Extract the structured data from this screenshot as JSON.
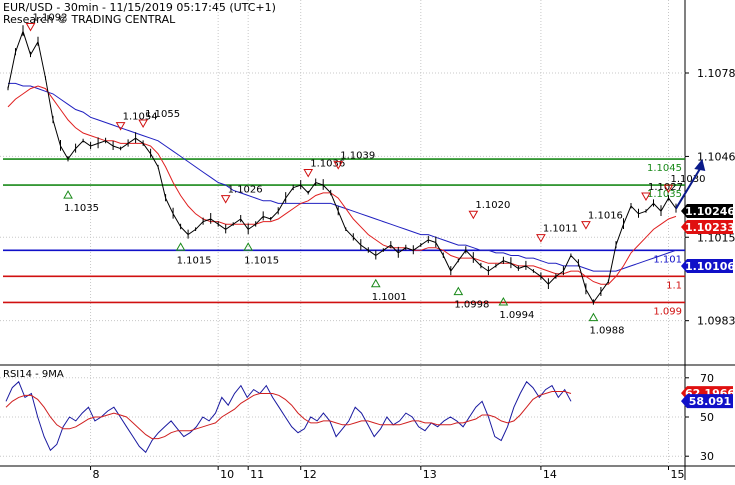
{
  "header": {
    "title": "EUR/USD - 30min - 11/15/2019 05:17:45 (UTC+1)",
    "subtitle": "Research © TRADING CENTRAL"
  },
  "colors": {
    "price": "#000000",
    "ma_fast": "#e02020",
    "ma_slow": "#2020c0",
    "green_line": "#1a8a1a",
    "blue_line": "#1010c8",
    "red_line": "#d01010",
    "arrow": "#0a1a8a",
    "grid": "#c8c8c8",
    "rsi": "#1a1aa0",
    "rsi_ma": "#d02020",
    "tag_black": "#000000",
    "tag_red": "#e01010",
    "tag_blue": "#1010c8"
  },
  "chart_data": [
    {
      "type": "line",
      "name": "price",
      "ylim": [
        1.0966,
        1.1106
      ],
      "price_axis_ticks": [
        "1.1078",
        "1.1046",
        "1.1015",
        "1.0983"
      ],
      "x_axis_labels": [
        {
          "label": "8",
          "index": 11
        },
        {
          "label": "10",
          "index": 28
        },
        {
          "label": "11",
          "index": 32
        },
        {
          "label": "12",
          "index": 39
        },
        {
          "label": "13",
          "index": 55
        },
        {
          "label": "14",
          "index": 71
        },
        {
          "label": "15",
          "index": 88
        }
      ],
      "close": [
        1.1072,
        1.1086,
        1.1094,
        1.1085,
        1.109,
        1.1076,
        1.106,
        1.105,
        1.1045,
        1.1049,
        1.1052,
        1.105,
        1.1051,
        1.1052,
        1.105,
        1.1049,
        1.1051,
        1.1053,
        1.1051,
        1.1047,
        1.1042,
        1.103,
        1.1024,
        1.1019,
        1.1016,
        1.1018,
        1.1021,
        1.1022,
        1.102,
        1.1018,
        1.102,
        1.1022,
        1.1018,
        1.102,
        1.1023,
        1.1022,
        1.1025,
        1.103,
        1.1034,
        1.1035,
        1.1032,
        1.1036,
        1.1035,
        1.1032,
        1.1025,
        1.1018,
        1.1015,
        1.1012,
        1.101,
        1.1008,
        1.101,
        1.1012,
        1.1009,
        1.1011,
        1.101,
        1.1012,
        1.1014,
        1.1013,
        1.1008,
        1.1002,
        1.1006,
        1.101,
        1.1007,
        1.1004,
        1.1002,
        1.1004,
        1.1006,
        1.1005,
        1.1003,
        1.1004,
        1.1002,
        1.1,
        1.0997,
        1.1,
        1.1002,
        1.1008,
        1.1005,
        1.0995,
        1.099,
        1.0994,
        1.0998,
        1.1012,
        1.102,
        1.1027,
        1.1024,
        1.1025,
        1.1028,
        1.1025,
        1.103,
        1.1026
      ],
      "ma_fast": [
        1.1065,
        1.1068,
        1.107,
        1.1072,
        1.1073,
        1.1072,
        1.1068,
        1.1064,
        1.106,
        1.1057,
        1.1055,
        1.1054,
        1.1053,
        1.1052,
        1.1052,
        1.1051,
        1.1051,
        1.1051,
        1.1051,
        1.105,
        1.1047,
        1.1042,
        1.1036,
        1.1031,
        1.1027,
        1.1024,
        1.1022,
        1.1021,
        1.1021,
        1.102,
        1.102,
        1.102,
        1.102,
        1.102,
        1.1021,
        1.1021,
        1.1022,
        1.1024,
        1.1026,
        1.1028,
        1.1029,
        1.1031,
        1.1032,
        1.1032,
        1.103,
        1.1026,
        1.1022,
        1.1019,
        1.1016,
        1.1014,
        1.1012,
        1.1011,
        1.1011,
        1.1011,
        1.101,
        1.101,
        1.1011,
        1.1011,
        1.101,
        1.1008,
        1.1007,
        1.1007,
        1.1007,
        1.1006,
        1.1005,
        1.1005,
        1.1005,
        1.1005,
        1.1004,
        1.1004,
        1.1004,
        1.1003,
        1.1002,
        1.1001,
        1.1001,
        1.1002,
        1.1002,
        1.1,
        1.0998,
        1.0997,
        1.0997,
        1.1,
        1.1004,
        1.1009,
        1.1012,
        1.1015,
        1.1018,
        1.102,
        1.1022,
        1.1023
      ],
      "ma_slow": [
        1.1074,
        1.1074,
        1.1073,
        1.1073,
        1.1072,
        1.1071,
        1.107,
        1.1068,
        1.1066,
        1.1064,
        1.1063,
        1.1061,
        1.106,
        1.1059,
        1.1058,
        1.1057,
        1.1056,
        1.1055,
        1.1054,
        1.1053,
        1.1052,
        1.105,
        1.1048,
        1.1046,
        1.1044,
        1.1042,
        1.104,
        1.1038,
        1.1036,
        1.1035,
        1.1033,
        1.1032,
        1.1031,
        1.103,
        1.1029,
        1.1029,
        1.1028,
        1.1028,
        1.1028,
        1.1028,
        1.1028,
        1.1028,
        1.1028,
        1.1028,
        1.1027,
        1.1026,
        1.1025,
        1.1024,
        1.1023,
        1.1022,
        1.1021,
        1.102,
        1.1019,
        1.1018,
        1.1017,
        1.1016,
        1.1016,
        1.1015,
        1.1014,
        1.1013,
        1.1012,
        1.1012,
        1.1011,
        1.101,
        1.101,
        1.1009,
        1.1009,
        1.1008,
        1.1008,
        1.1007,
        1.1007,
        1.1006,
        1.1005,
        1.1005,
        1.1004,
        1.1004,
        1.1004,
        1.1003,
        1.1002,
        1.1002,
        1.1002,
        1.1002,
        1.1003,
        1.1004,
        1.1005,
        1.1006,
        1.1007,
        1.1008,
        1.1009,
        1.101
      ],
      "levels": [
        {
          "value": 1.1045,
          "label": "1.1045",
          "color": "#1a8a1a"
        },
        {
          "value": 1.1035,
          "label": "1.1035",
          "color": "#1a8a1a"
        },
        {
          "value": 1.101,
          "label": "1.101",
          "color": "#1010c8"
        },
        {
          "value": 1.1,
          "label": "1.1",
          "color": "#d01010"
        },
        {
          "value": 1.099,
          "label": "1.099",
          "color": "#d01010"
        }
      ],
      "price_tags": [
        {
          "label": "1.10246",
          "value": 1.10246,
          "color": "#000000"
        },
        {
          "label": "1.10233",
          "value": 1.10233,
          "color": "#e01010"
        },
        {
          "label": "1.10106",
          "value": 1.10106,
          "color": "#1010c8"
        }
      ],
      "highs": [
        {
          "index": 3,
          "value": 1.1092,
          "label": "1.1092"
        },
        {
          "index": 15,
          "value": 1.1054,
          "label": "1.1054"
        },
        {
          "index": 18,
          "value": 1.1055,
          "label": "1.1055"
        },
        {
          "index": 29,
          "value": 1.1026,
          "label": "1.1026"
        },
        {
          "index": 40,
          "value": 1.1036,
          "label": "1.1036"
        },
        {
          "index": 44,
          "value": 1.1039,
          "label": "1.1039"
        },
        {
          "index": 62,
          "value": 1.102,
          "label": "1.1020"
        },
        {
          "index": 71,
          "value": 1.1011,
          "label": "1.1011"
        },
        {
          "index": 77,
          "value": 1.1016,
          "label": "1.1016"
        },
        {
          "index": 85,
          "value": 1.1027,
          "label": "1.1027"
        },
        {
          "index": 88,
          "value": 1.103,
          "label": "1.1030"
        }
      ],
      "lows": [
        {
          "index": 8,
          "value": 1.1035,
          "label": "1.1035"
        },
        {
          "index": 23,
          "value": 1.1015,
          "label": "1.1015"
        },
        {
          "index": 32,
          "value": 1.1015,
          "label": "1.1015"
        },
        {
          "index": 49,
          "value": 1.1001,
          "label": "1.1001"
        },
        {
          "index": 60,
          "value": 1.0998,
          "label": "1.0998"
        },
        {
          "index": 66,
          "value": 1.0994,
          "label": "1.0994"
        },
        {
          "index": 78,
          "value": 1.0988,
          "label": "1.0988"
        }
      ],
      "arrow": {
        "from": {
          "index": 89,
          "value": 1.1026
        },
        "to": {
          "index": 92.5,
          "value": 1.1045
        }
      }
    },
    {
      "type": "line",
      "name": "rsi",
      "label": "RSI14 - 9MA",
      "ylim": [
        25,
        75
      ],
      "ticks": [
        "70",
        "50",
        "30"
      ],
      "tags": [
        {
          "label": "62.1966",
          "value": 62.1966,
          "color": "#e01010"
        },
        {
          "label": "58.091",
          "value": 58.091,
          "color": "#1010c8"
        }
      ],
      "rsi": [
        58,
        65,
        68,
        60,
        62,
        50,
        40,
        33,
        36,
        45,
        50,
        48,
        52,
        55,
        48,
        50,
        53,
        55,
        50,
        45,
        40,
        35,
        32,
        38,
        42,
        45,
        48,
        44,
        40,
        42,
        45,
        50,
        48,
        52,
        60,
        56,
        62,
        66,
        60,
        64,
        62,
        66,
        60,
        55,
        50,
        45,
        42,
        44,
        50,
        48,
        52,
        48,
        40,
        44,
        48,
        55,
        52,
        46,
        40,
        44,
        50,
        46,
        48,
        52,
        50,
        45,
        43,
        47,
        45,
        48,
        50,
        48,
        45,
        50,
        55,
        58,
        50,
        40,
        38,
        45,
        55,
        62,
        68,
        65,
        60,
        64,
        66,
        60,
        64,
        58
      ],
      "rsi_ma": [
        55,
        58,
        60,
        61,
        61,
        59,
        55,
        50,
        46,
        44,
        44,
        45,
        47,
        49,
        50,
        50,
        51,
        52,
        51,
        50,
        47,
        44,
        41,
        39,
        39,
        40,
        42,
        43,
        43,
        43,
        44,
        45,
        46,
        47,
        50,
        52,
        54,
        57,
        59,
        61,
        62,
        62,
        62,
        61,
        59,
        56,
        52,
        49,
        47,
        47,
        48,
        48,
        47,
        46,
        46,
        47,
        48,
        48,
        47,
        46,
        46,
        46,
        46,
        47,
        48,
        48,
        47,
        47,
        46,
        46,
        46,
        47,
        47,
        48,
        49,
        51,
        51,
        50,
        48,
        47,
        48,
        51,
        55,
        59,
        61,
        62,
        63,
        63,
        63,
        62
      ]
    }
  ]
}
